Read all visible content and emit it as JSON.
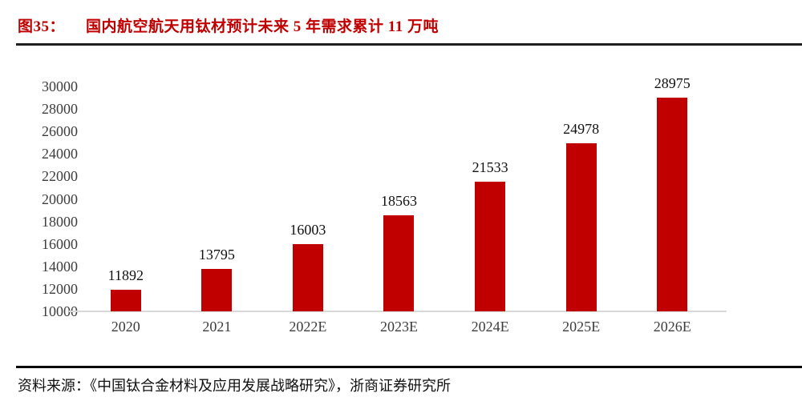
{
  "header": {
    "figure_label": "图35：",
    "title": "国内航空航天用钛材预计未来 5 年需求累计 11 万吨",
    "title_color": "#c00000"
  },
  "footer": {
    "source_label": "资料来源：",
    "source_text": "《中国钛合金材料及应用发展战略研究》，浙商证券研究所"
  },
  "chart_data": {
    "type": "bar",
    "categories": [
      "2020",
      "2021",
      "2022E",
      "2023E",
      "2024E",
      "2025E",
      "2026E"
    ],
    "values": [
      11892,
      13795,
      16003,
      18563,
      21533,
      24978,
      28975
    ],
    "data_labels": [
      "11892",
      "13795",
      "16003",
      "18563",
      "21533",
      "24978",
      "28975"
    ],
    "title": "国内航空航天用钛材预计未来 5 年需求累计 11 万吨",
    "xlabel": "",
    "ylabel": "",
    "ylim": [
      10000,
      30000
    ],
    "ytick_step": 2000,
    "ytick_labels": [
      "30000",
      "28000",
      "26000",
      "24000",
      "22000",
      "20000",
      "18000",
      "16000",
      "14000",
      "12000",
      "10000"
    ],
    "bar_color": "#c00000",
    "grid": false,
    "legend_position": "none"
  }
}
